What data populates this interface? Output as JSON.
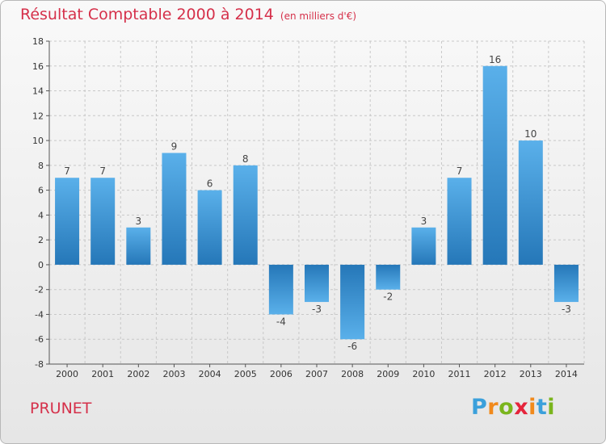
{
  "header": {
    "title": "Résultat Comptable 2000 à 2014",
    "unit": "(en milliers d'€)"
  },
  "footer": {
    "commune": "PRUNET",
    "logo_letters": [
      "P",
      "r",
      "o",
      "x",
      "i",
      "t",
      "i"
    ],
    "logo_colors": [
      "#3ba0db",
      "#f18a1c",
      "#7ab51d",
      "#e5243b",
      "#f18a1c",
      "#3ba0db",
      "#7ab51d"
    ]
  },
  "colors": {
    "title": "#d5304a",
    "bar_light": "#5ab0ea",
    "bar_dark": "#2577b8",
    "grid": "#c8c8c8"
  },
  "chart_data": {
    "type": "bar",
    "categories": [
      "2000",
      "2001",
      "2002",
      "2003",
      "2004",
      "2005",
      "2006",
      "2007",
      "2008",
      "2009",
      "2010",
      "2011",
      "2012",
      "2013",
      "2014"
    ],
    "values": [
      7,
      7,
      3,
      9,
      6,
      8,
      -4,
      -3,
      -6,
      -2,
      3,
      7,
      16,
      10,
      -3
    ],
    "ylim": [
      -8,
      18
    ],
    "yticks": [
      -8,
      -6,
      -4,
      -2,
      0,
      2,
      4,
      6,
      8,
      10,
      12,
      14,
      16,
      18
    ],
    "grid": true,
    "data_labels": true
  }
}
